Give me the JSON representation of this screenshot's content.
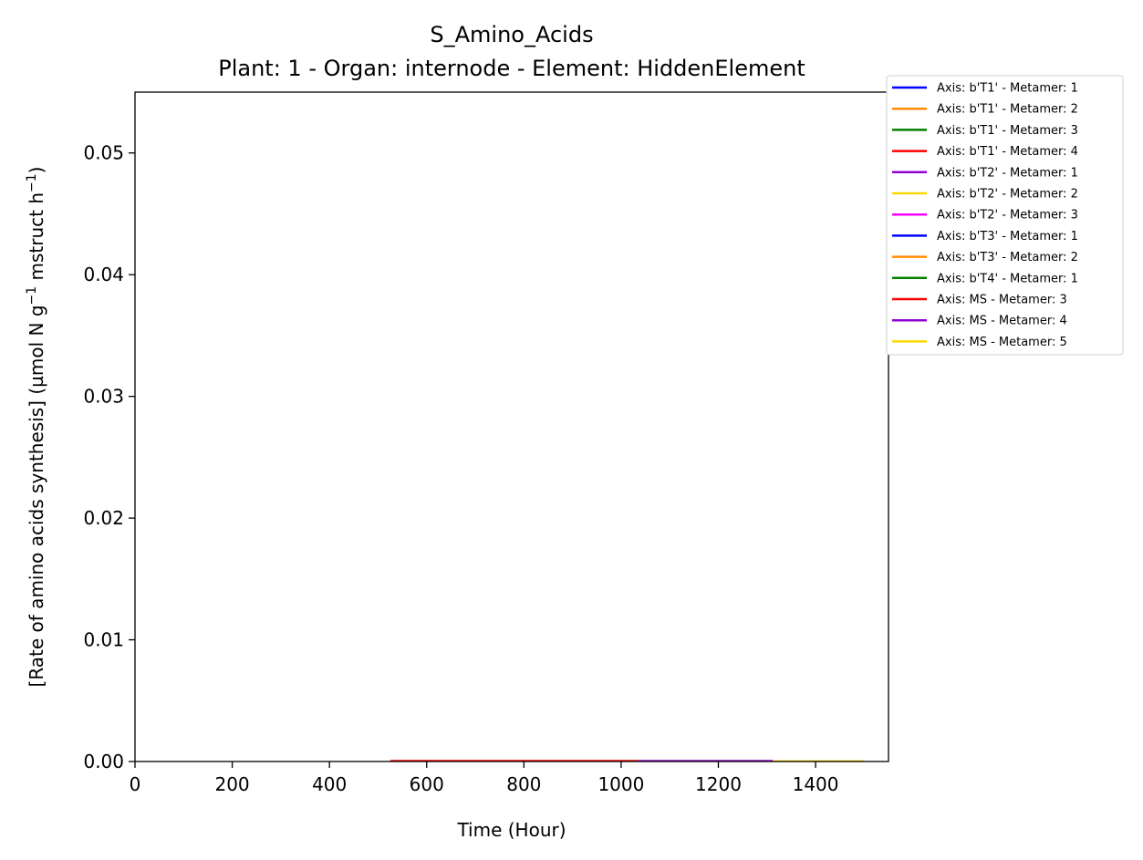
{
  "chart_data": {
    "type": "line",
    "title": "S_Amino_Acids",
    "subtitle": "Plant: 1 - Organ: internode - Element: HiddenElement",
    "xlabel": "Time (Hour)",
    "ylabel": "[Rate of amino acids synthesis] (µmol N g",
    "ylabel_sup1": "−1",
    "ylabel_mid": " mstruct h",
    "ylabel_sup2": "−1",
    "ylabel_end": ")",
    "xlim": [
      0,
      1550
    ],
    "ylim": [
      0,
      0.055
    ],
    "x_ticks": [
      0,
      200,
      400,
      600,
      800,
      1000,
      1200,
      1400
    ],
    "x_tick_labels": [
      "0",
      "200",
      "400",
      "600",
      "800",
      "1000",
      "1200",
      "1400"
    ],
    "y_ticks": [
      0,
      0.01,
      0.02,
      0.03,
      0.04,
      0.05
    ],
    "y_tick_labels": [
      "0.00",
      "0.01",
      "0.02",
      "0.03",
      "0.04",
      "0.05"
    ],
    "grid": false,
    "legend_position": "outside-top-right",
    "series": [
      {
        "name": "Axis: b'T1' - Metamer: 1",
        "color": "#0000ff",
        "x": [],
        "y": []
      },
      {
        "name": "Axis: b'T1' - Metamer: 2",
        "color": "#ff8c00",
        "x": [],
        "y": []
      },
      {
        "name": "Axis: b'T1' - Metamer: 3",
        "color": "#008000",
        "x": [],
        "y": []
      },
      {
        "name": "Axis: b'T1' - Metamer: 4",
        "color": "#ff0000",
        "x": [],
        "y": []
      },
      {
        "name": "Axis: b'T2' - Metamer: 1",
        "color": "#9400d3",
        "x": [],
        "y": []
      },
      {
        "name": "Axis: b'T2' - Metamer: 2",
        "color": "#ffd700",
        "x": [],
        "y": []
      },
      {
        "name": "Axis: b'T2' - Metamer: 3",
        "color": "#ff00ff",
        "x": [],
        "y": []
      },
      {
        "name": "Axis: b'T3' - Metamer: 1",
        "color": "#0000ff",
        "x": [],
        "y": []
      },
      {
        "name": "Axis: b'T3' - Metamer: 2",
        "color": "#ff8c00",
        "x": [],
        "y": []
      },
      {
        "name": "Axis: b'T4' - Metamer: 1",
        "color": "#008000",
        "x": [],
        "y": []
      },
      {
        "name": "Axis: MS - Metamer: 3",
        "color": "#ff0000",
        "x": [
          525,
          1035
        ],
        "y": [
          5e-05,
          5e-05
        ]
      },
      {
        "name": "Axis: MS - Metamer: 4",
        "color": "#9400d3",
        "x": [
          1035,
          1312
        ],
        "y": [
          5e-05,
          5e-05
        ]
      },
      {
        "name": "Axis: MS - Metamer: 5",
        "color": "#ffd700",
        "x": [
          1312,
          1500
        ],
        "y": [
          3e-05,
          3e-05
        ]
      }
    ]
  }
}
